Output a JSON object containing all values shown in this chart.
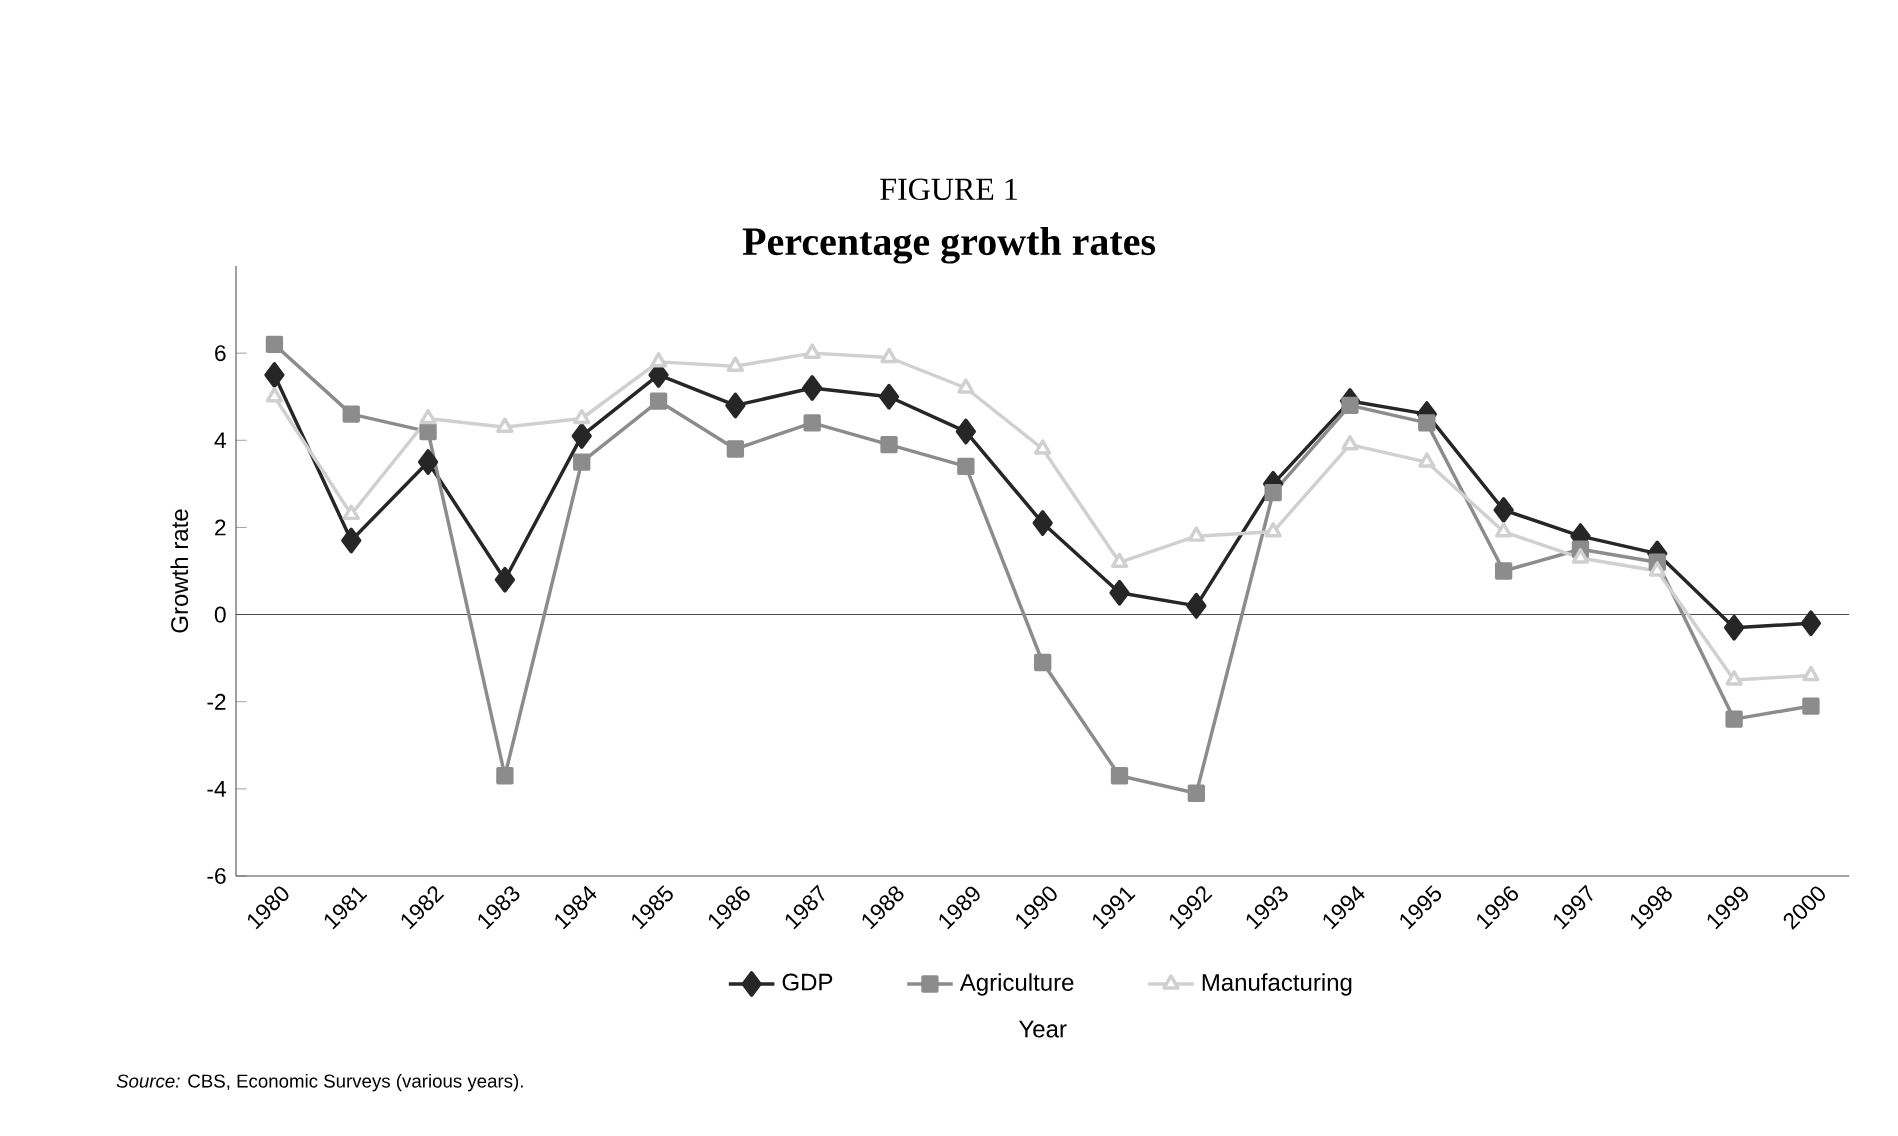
{
  "chart_data": {
    "type": "line",
    "title": "Percentage growth rates",
    "subtitle": "FIGURE 1",
    "xlabel": "Year",
    "ylabel": "Growth rate",
    "categories": [
      "1980",
      "1981",
      "1982",
      "1983",
      "1984",
      "1985",
      "1986",
      "1987",
      "1988",
      "1989",
      "1990",
      "1991",
      "1992",
      "1993",
      "1994",
      "1995",
      "1996",
      "1997",
      "1998",
      "1999",
      "2000"
    ],
    "series": [
      {
        "name": "GDP",
        "color": "#262626",
        "marker": "diamond",
        "values": [
          5.5,
          1.7,
          3.5,
          0.8,
          4.1,
          5.5,
          4.8,
          5.2,
          5.0,
          4.2,
          2.1,
          0.5,
          0.2,
          3.0,
          4.9,
          4.6,
          2.4,
          1.8,
          1.4,
          -0.3,
          -0.2
        ]
      },
      {
        "name": "Agriculture",
        "color": "#8c8c8c",
        "marker": "square",
        "values": [
          6.2,
          4.6,
          4.2,
          -3.7,
          3.5,
          4.9,
          3.8,
          4.4,
          3.9,
          3.4,
          -1.1,
          -3.7,
          -4.1,
          2.8,
          4.8,
          4.4,
          1.0,
          1.5,
          1.2,
          -2.4,
          -2.1
        ]
      },
      {
        "name": "Manufacturing",
        "color": "#d0d0d0",
        "marker": "triangle",
        "values": [
          5.0,
          2.3,
          4.5,
          4.3,
          4.5,
          5.8,
          5.7,
          6.0,
          5.9,
          5.2,
          3.8,
          1.2,
          1.8,
          1.9,
          3.9,
          3.5,
          1.9,
          1.3,
          1.0,
          -1.5,
          -1.4
        ]
      }
    ],
    "ylim": [
      -6,
      8
    ],
    "yticks": [
      -6,
      -4,
      -2,
      0,
      2,
      4,
      6
    ],
    "grid": false,
    "ref_lines": [
      {
        "axis": "y",
        "value": 0
      }
    ],
    "legend": "bottom",
    "line_style": "solid",
    "annotations": [
      "*Source:* CBS, Economic Surveys (various years)."
    ]
  }
}
